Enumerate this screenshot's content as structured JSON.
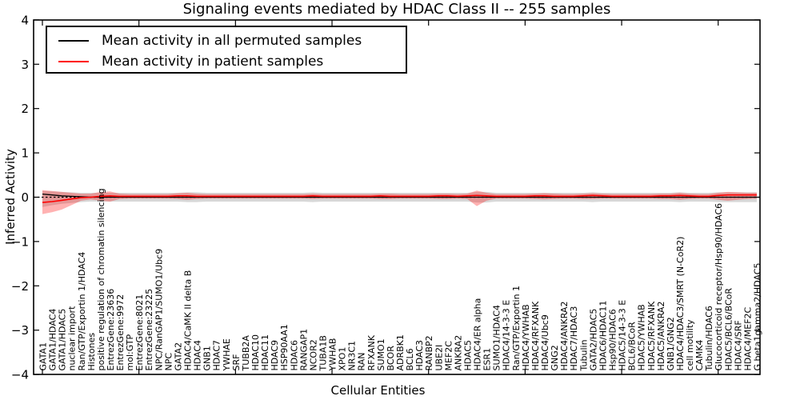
{
  "chart_data": {
    "type": "line",
    "title": "Signaling events mediated by HDAC Class II -- 255 samples",
    "xlabel": "Cellular Entities",
    "ylabel": "Inferred Activity",
    "ylim": [
      -4,
      4
    ],
    "yticks": [
      -4,
      -3,
      -2,
      -1,
      0,
      1,
      2,
      3,
      4
    ],
    "grid": false,
    "legend_position": "upper left",
    "zero_line": {
      "style": "dashed",
      "color": "#000000",
      "y": 0
    },
    "categories": [
      "GATA1",
      "GATA1/HDAC4",
      "GATA1/HDAC5",
      "nuclear import",
      "Ran/GTP/Exportin 1/HDAC4",
      "Histones",
      "positive regulation of chromatin silencing",
      "EntrezGene:23636",
      "EntrezGene:9972",
      "mol:GTP",
      "EntrezGene:8021",
      "EntrezGene:23225",
      "NPC/RanGAP1/SUMO1/Ubc9",
      "NPC",
      "GATA2",
      "HDAC4/CaMK II delta B",
      "HDAC4",
      "GNB1",
      "HDAC7",
      "YWHAE",
      "SRF",
      "TUBB2A",
      "HDAC10",
      "HDAC11",
      "HDAC9",
      "HSP90AA1",
      "HDAC6",
      "RANGAP1",
      "NCOR2",
      "TUBA1B",
      "YWHAB",
      "XPO1",
      "NR3C1",
      "RAN",
      "RFXANK",
      "SUMO1",
      "BCOR",
      "ADRBK1",
      "BCL6",
      "HDAC3",
      "RANBP2",
      "UBE2I",
      "MEF2C",
      "ANKRA2",
      "HDAC5",
      "HDAC4/ER alpha",
      "ESR1",
      "SUMO1/HDAC4",
      "HDAC4/14-3-3 E",
      "Ran/GTP/Exportin 1",
      "HDAC4/YWHAB",
      "HDAC4/RFXANK",
      "HDAC4/Ubc9",
      "GNG2",
      "HDAC4/ANKRA2",
      "HDAC7/HDAC3",
      "Tubulin",
      "GATA2/HDAC5",
      "HDAC6/HDAC11",
      "Hsp90/HDAC6",
      "HDAC5/14-3-3 E",
      "BCL6/BCoR",
      "HDAC5/YWHAB",
      "HDAC5/RFXANK",
      "HDAC5/ANKRA2",
      "GNB1/GNG2",
      "HDAC4/HDAC3/SMRT (N-CoR2)",
      "cell motility",
      "CAMK4",
      "Tubulin/HDAC6",
      "Glucocorticoid receptor/Hsp90/HDAC6",
      "HDAC5/BCL6/BCoR",
      "HDAC4/SRF",
      "HDAC4/MEF2C",
      "G beta1gamma2/HDAC5"
    ],
    "series": [
      {
        "name": "Mean activity in all permuted samples",
        "color": "#000000",
        "values": [
          0.07,
          0.05,
          0.03,
          0.02,
          0.01,
          0.0,
          0.0,
          0.0,
          0.0,
          0.0,
          0.0,
          0.0,
          0.0,
          0.0,
          0.0,
          0.0,
          0.0,
          0.0,
          0.0,
          0.0,
          0.0,
          0.0,
          0.0,
          0.0,
          0.0,
          0.0,
          0.0,
          0.0,
          0.0,
          0.0,
          0.0,
          0.0,
          0.0,
          0.0,
          0.0,
          0.0,
          0.0,
          0.0,
          0.0,
          0.0,
          0.0,
          0.0,
          0.0,
          0.0,
          0.0,
          0.0,
          0.0,
          0.0,
          0.0,
          0.0,
          0.0,
          0.0,
          0.0,
          0.0,
          0.0,
          0.0,
          0.0,
          0.0,
          0.0,
          0.0,
          0.0,
          0.0,
          0.0,
          0.0,
          0.0,
          0.0,
          0.0,
          0.0,
          0.0,
          0.0,
          0.0,
          0.0,
          0.0,
          0.0,
          0.0
        ]
      },
      {
        "name": "Mean activity in patient samples",
        "color": "#ff0000",
        "values": [
          -0.12,
          -0.1,
          -0.07,
          -0.04,
          -0.01,
          0.0,
          0.02,
          0.03,
          0.02,
          0.02,
          0.02,
          0.02,
          0.02,
          0.02,
          0.03,
          0.03,
          0.02,
          0.02,
          0.02,
          0.02,
          0.02,
          0.02,
          0.02,
          0.02,
          0.02,
          0.02,
          0.02,
          0.02,
          0.03,
          0.02,
          0.02,
          0.02,
          0.02,
          0.02,
          0.02,
          0.03,
          0.02,
          0.02,
          0.02,
          0.02,
          0.02,
          0.03,
          0.03,
          0.02,
          0.03,
          0.04,
          0.03,
          0.02,
          0.02,
          0.02,
          0.02,
          0.03,
          0.03,
          0.02,
          0.02,
          0.02,
          0.03,
          0.04,
          0.03,
          0.02,
          0.02,
          0.02,
          0.02,
          0.02,
          0.03,
          0.03,
          0.04,
          0.03,
          0.02,
          0.02,
          0.04,
          0.05,
          0.05,
          0.05,
          0.05
        ]
      }
    ],
    "bands": [
      {
        "name": "permuted-samples-range",
        "color": "#999999",
        "upper": [
          0.14,
          0.13,
          0.12,
          0.11,
          0.1,
          0.1,
          0.1,
          0.1,
          0.1,
          0.1,
          0.1,
          0.1,
          0.1,
          0.1,
          0.1,
          0.11,
          0.11,
          0.1,
          0.1,
          0.1,
          0.1,
          0.1,
          0.1,
          0.1,
          0.1,
          0.1,
          0.1,
          0.1,
          0.11,
          0.1,
          0.1,
          0.1,
          0.1,
          0.1,
          0.1,
          0.1,
          0.1,
          0.1,
          0.1,
          0.1,
          0.1,
          0.1,
          0.1,
          0.1,
          0.1,
          0.12,
          0.12,
          0.1,
          0.1,
          0.1,
          0.1,
          0.1,
          0.1,
          0.1,
          0.1,
          0.1,
          0.1,
          0.11,
          0.1,
          0.1,
          0.1,
          0.1,
          0.1,
          0.1,
          0.1,
          0.1,
          0.11,
          0.1,
          0.1,
          0.1,
          0.11,
          0.11,
          0.11,
          0.11,
          0.11
        ],
        "lower": [
          -0.22,
          -0.18,
          -0.15,
          -0.13,
          -0.11,
          -0.1,
          -0.1,
          -0.1,
          -0.1,
          -0.1,
          -0.1,
          -0.1,
          -0.1,
          -0.1,
          -0.1,
          -0.11,
          -0.11,
          -0.1,
          -0.1,
          -0.1,
          -0.1,
          -0.1,
          -0.1,
          -0.1,
          -0.1,
          -0.1,
          -0.1,
          -0.1,
          -0.11,
          -0.1,
          -0.1,
          -0.1,
          -0.1,
          -0.1,
          -0.1,
          -0.1,
          -0.1,
          -0.1,
          -0.1,
          -0.1,
          -0.1,
          -0.1,
          -0.1,
          -0.1,
          -0.1,
          -0.12,
          -0.12,
          -0.1,
          -0.1,
          -0.1,
          -0.1,
          -0.1,
          -0.1,
          -0.1,
          -0.1,
          -0.1,
          -0.1,
          -0.11,
          -0.1,
          -0.1,
          -0.1,
          -0.1,
          -0.1,
          -0.1,
          -0.1,
          -0.1,
          -0.11,
          -0.1,
          -0.1,
          -0.1,
          -0.11,
          -0.11,
          -0.11,
          -0.11,
          -0.11
        ]
      },
      {
        "name": "patient-samples-range",
        "color": "#ff0000",
        "upper": [
          0.16,
          0.14,
          0.12,
          0.1,
          0.08,
          0.08,
          0.12,
          0.13,
          0.08,
          0.07,
          0.07,
          0.07,
          0.07,
          0.07,
          0.09,
          0.1,
          0.08,
          0.07,
          0.07,
          0.07,
          0.07,
          0.07,
          0.07,
          0.07,
          0.07,
          0.07,
          0.07,
          0.07,
          0.08,
          0.07,
          0.07,
          0.07,
          0.07,
          0.07,
          0.07,
          0.08,
          0.08,
          0.07,
          0.07,
          0.07,
          0.07,
          0.08,
          0.08,
          0.07,
          0.08,
          0.15,
          0.1,
          0.07,
          0.07,
          0.07,
          0.07,
          0.08,
          0.09,
          0.08,
          0.07,
          0.07,
          0.08,
          0.09,
          0.08,
          0.07,
          0.07,
          0.07,
          0.07,
          0.07,
          0.08,
          0.08,
          0.1,
          0.08,
          0.07,
          0.07,
          0.1,
          0.12,
          0.11,
          0.1,
          0.1
        ],
        "lower": [
          -0.38,
          -0.34,
          -0.28,
          -0.18,
          -0.08,
          -0.05,
          -0.08,
          -0.1,
          -0.04,
          -0.03,
          -0.03,
          -0.03,
          -0.03,
          -0.03,
          -0.04,
          -0.06,
          -0.04,
          -0.03,
          -0.03,
          -0.03,
          -0.03,
          -0.03,
          -0.03,
          -0.03,
          -0.03,
          -0.03,
          -0.03,
          -0.03,
          -0.04,
          -0.03,
          -0.03,
          -0.03,
          -0.03,
          -0.03,
          -0.03,
          -0.04,
          -0.04,
          -0.03,
          -0.03,
          -0.03,
          -0.03,
          -0.04,
          -0.04,
          -0.03,
          -0.04,
          -0.2,
          -0.08,
          -0.03,
          -0.03,
          -0.03,
          -0.03,
          -0.04,
          -0.05,
          -0.04,
          -0.03,
          -0.03,
          -0.04,
          -0.04,
          -0.03,
          -0.03,
          -0.03,
          -0.03,
          -0.03,
          -0.03,
          -0.04,
          -0.04,
          -0.06,
          -0.04,
          -0.03,
          -0.03,
          -0.06,
          -0.08,
          -0.06,
          -0.04,
          -0.03
        ]
      }
    ]
  }
}
